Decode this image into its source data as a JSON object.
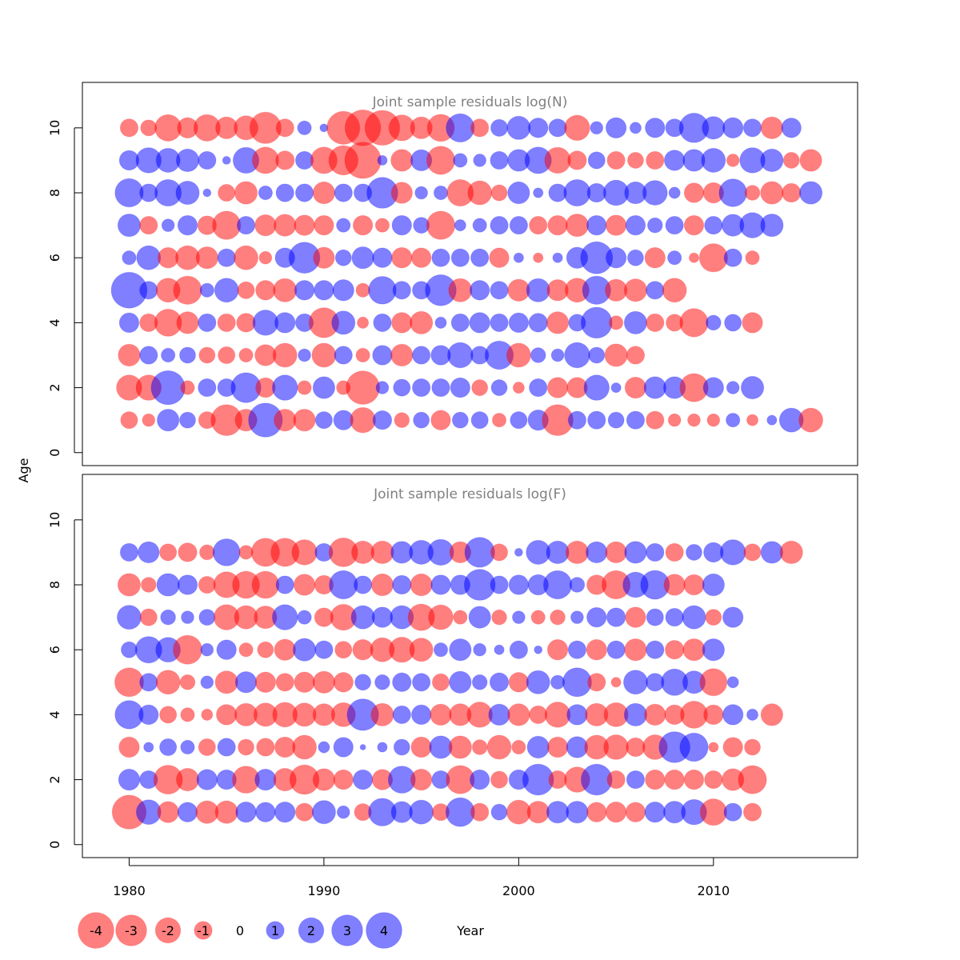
{
  "chart_data": {
    "type": "bubble-residuals",
    "ylabel": "Age",
    "xlabel": "Year",
    "x_ticks": [
      1980,
      1990,
      2000,
      2010
    ],
    "y_ticks": [
      0,
      2,
      4,
      6,
      8,
      10
    ],
    "xlim": [
      1977.6,
      2017.4
    ],
    "ylim": [
      -0.4,
      11.4
    ],
    "years_start": 1980,
    "colors": {
      "positive": "#0000ff",
      "negative": "#ff0000",
      "opacity": 0.5
    },
    "legend": {
      "labels": [
        "-4",
        "-3",
        "-2",
        "-1",
        "0",
        "1",
        "2",
        "3",
        "4"
      ],
      "values": [
        -4,
        -3,
        -2,
        -1,
        0,
        1,
        2,
        3,
        4
      ],
      "placement": "bottom-left"
    },
    "panels": [
      {
        "title": "Joint sample residuals log(N)",
        "ages": [
          1,
          2,
          3,
          4,
          5,
          6,
          7,
          8,
          9,
          10
        ],
        "rows": [
          [
            -0.9,
            -0.5,
            1.5,
            0.8,
            -0.9,
            -3.0,
            -1.5,
            3.6,
            -1.5,
            -1.5,
            0.9,
            1.2,
            -2.0,
            1.1,
            -0.7,
            0.8,
            -1.2,
            0.8,
            0.9,
            -0.6,
            0.9,
            1.3,
            -3.0,
            1.0,
            1.0,
            0.8,
            1.0,
            -1.0,
            -0.5,
            -0.5,
            -0.5,
            0.6,
            -0.4,
            0.3,
            1.8,
            -1.8
          ],
          [
            -2.0,
            -2.0,
            3.6,
            -0.6,
            1.0,
            1.0,
            2.8,
            -1.2,
            2.0,
            -0.6,
            1.5,
            -0.6,
            -3.5,
            0.5,
            0.9,
            1.0,
            1.0,
            1.2,
            -0.8,
            0.8,
            -0.4,
            1.0,
            -1.3,
            -1.3,
            2.0,
            0.3,
            -1.4,
            1.5,
            1.5,
            -2.5,
            1.3,
            0.5,
            1.6
          ],
          [
            -1.5,
            1.0,
            0.6,
            0.8,
            -0.8,
            -0.9,
            -0.6,
            -1.4,
            -1.8,
            0.5,
            -1.8,
            1.0,
            -0.6,
            1.2,
            -1.5,
            1.0,
            1.2,
            2.0,
            1.0,
            2.5,
            -1.8,
            0.7,
            0.5,
            2.0,
            0.8,
            -1.6,
            -1.0
          ],
          [
            1.2,
            -1.0,
            -2.3,
            -1.5,
            1.0,
            -1.0,
            -1.1,
            2.0,
            1.3,
            1.0,
            -2.8,
            1.7,
            -0.4,
            1.0,
            -1.3,
            -1.6,
            0.4,
            1.0,
            1.3,
            1.0,
            1.2,
            1.1,
            -1.5,
            0.9,
            3.0,
            -0.6,
            1.6,
            -1.0,
            -0.9,
            -2.5,
            0.7,
            0.9,
            -1.3
          ],
          [
            4.0,
            1.0,
            -1.8,
            -2.5,
            0.6,
            1.8,
            -0.9,
            -1.2,
            -1.7,
            1.2,
            1.2,
            1.4,
            -0.6,
            2.4,
            1.0,
            1.0,
            3.0,
            -1.7,
            1.2,
            1.0,
            -1.5,
            1.7,
            -1.4,
            -1.8,
            2.5,
            -1.5,
            -1.6,
            1.0,
            -1.8
          ],
          [
            0.6,
            1.8,
            -1.3,
            -1.8,
            -1.5,
            1.0,
            -1.8,
            -0.5,
            1.2,
            3.0,
            -1.4,
            0.8,
            1.5,
            1.2,
            -1.3,
            -1.2,
            1.0,
            1.0,
            1.0,
            -1.2,
            0.3,
            -0.3,
            0.3,
            1.4,
            3.2,
            1.3,
            0.8,
            -1.3,
            0.6,
            -0.3,
            -2.5,
            1.0,
            -0.6
          ],
          [
            1.6,
            -1.0,
            0.5,
            1.2,
            -1.1,
            -2.5,
            1.0,
            -1.4,
            -1.5,
            -1.3,
            -1.2,
            0.6,
            -1.2,
            -0.6,
            1.2,
            0.8,
            -2.5,
            0.4,
            0.6,
            1.0,
            1.0,
            -1.0,
            -1.2,
            -1.6,
            1.2,
            -1.3,
            1.2,
            0.7,
            1.0,
            -1.2,
            1.0,
            1.5,
            2.0,
            1.6
          ],
          [
            2.5,
            1.0,
            2.2,
            1.7,
            0.2,
            -0.9,
            -1.6,
            0.6,
            1.0,
            1.0,
            -1.5,
            1.0,
            1.0,
            3.0,
            -1.4,
            0.5,
            0.6,
            -2.2,
            -1.8,
            -0.8,
            1.5,
            0.3,
            1.0,
            2.2,
            1.1,
            2.0,
            1.5,
            1.9,
            0.4,
            -1.2,
            -1.3,
            2.4,
            -0.7,
            -1.6,
            -1.1,
            1.6
          ],
          [
            1.2,
            2.0,
            1.8,
            1.6,
            1.0,
            0.2,
            2.1,
            -2.2,
            -1.1,
            1.0,
            -2.2,
            -2.7,
            -4.1,
            0.3,
            -1.5,
            1.4,
            -2.5,
            0.6,
            0.5,
            1.0,
            1.5,
            2.2,
            -2.1,
            -1.1,
            0.9,
            -1.0,
            -0.8,
            -1.0,
            1.3,
            1.5,
            1.8,
            -0.5,
            2.0,
            1.6,
            -0.8,
            -1.5
          ],
          [
            -1.0,
            -0.8,
            -2.2,
            -1.3,
            -2.2,
            -1.5,
            -1.8,
            -3.1,
            -1.0,
            0.6,
            0.2,
            -3.4,
            -4.0,
            -3.8,
            -2.1,
            -1.5,
            -2.3,
            2.5,
            -1.0,
            0.9,
            1.7,
            1.2,
            1.0,
            -2.0,
            0.5,
            1.3,
            0.4,
            1.2,
            1.0,
            2.7,
            1.6,
            1.3,
            1.0,
            -1.5,
            1.2
          ]
        ]
      },
      {
        "title": "Joint sample residuals log(F)",
        "ages": [
          1,
          2,
          3,
          4,
          5,
          6,
          7,
          8,
          9
        ],
        "rows": [
          [
            -3.6,
            1.9,
            -1.4,
            1.2,
            -1.6,
            -1.6,
            1.3,
            1.2,
            1.3,
            -1.0,
            1.7,
            0.5,
            -0.9,
            2.4,
            1.4,
            1.8,
            -0.9,
            2.6,
            -1.0,
            0.8,
            -1.8,
            -1.5,
            1.5,
            1.5,
            -1.2,
            -1.3,
            -1.2,
            1.3,
            1.5,
            2.0,
            -2.2,
            1.0,
            -1.0
          ],
          [
            1.4,
            1.0,
            -2.6,
            -1.6,
            1.3,
            1.2,
            -2.3,
            1.4,
            -1.6,
            -2.7,
            -1.5,
            -1.2,
            1.2,
            -1.3,
            2.3,
            -1.4,
            1.0,
            -2.5,
            1.2,
            -0.9,
            1.2,
            3.0,
            -1.0,
            -2.0,
            3.0,
            -1.0,
            1.0,
            -1.2,
            -1.2,
            -1.2,
            -1.0,
            -1.5,
            -2.5
          ],
          [
            -1.3,
            0.3,
            0.9,
            0.6,
            -0.9,
            1.0,
            -0.8,
            -1.0,
            -1.3,
            -1.8,
            0.4,
            1.2,
            0.1,
            0.3,
            0.8,
            -1.3,
            1.6,
            -1.6,
            -0.7,
            -1.8,
            -0.6,
            1.5,
            -1.3,
            1.4,
            -1.8,
            -1.9,
            -1.1,
            -1.9,
            3.0,
            2.5,
            -0.3,
            -1.2,
            -0.8
          ],
          [
            2.5,
            1.2,
            -0.9,
            -0.6,
            -0.4,
            -1.3,
            -1.6,
            -1.7,
            -1.9,
            -1.7,
            -1.5,
            -1.8,
            3.1,
            -1.6,
            1.0,
            1.2,
            -1.4,
            -1.5,
            -2.0,
            1.4,
            -1.5,
            -1.0,
            -2.0,
            1.3,
            -1.6,
            -1.8,
            1.6,
            -1.4,
            -1.2,
            -2.3,
            -1.2,
            1.3,
            0.4,
            -1.5
          ],
          [
            -2.6,
            1.0,
            -1.8,
            -0.7,
            0.5,
            -1.6,
            1.4,
            -1.3,
            -1.0,
            -1.3,
            -1.5,
            -1.2,
            0.8,
            0.7,
            1.1,
            1.0,
            -0.9,
            1.5,
            0.7,
            1.1,
            -1.2,
            1.7,
            0.6,
            2.6,
            -1.0,
            -0.3,
            1.8,
            1.0,
            2.2,
            1.6,
            -2.3,
            0.4
          ],
          [
            0.8,
            2.2,
            1.9,
            -2.6,
            0.5,
            1.2,
            -0.6,
            -0.8,
            -1.4,
            1.6,
            1.0,
            -0.9,
            -1.3,
            -1.8,
            -2.0,
            -1.7,
            0.6,
            1.5,
            0.5,
            0.3,
            1.0,
            0.2,
            -1.3,
            1.0,
            -1.3,
            1.0,
            -1.5,
            1.0,
            -1.1,
            -1.5,
            1.5
          ],
          [
            1.8,
            -0.9,
            0.7,
            0.5,
            0.8,
            -2.0,
            -1.7,
            -1.6,
            2.0,
            0.6,
            -1.1,
            -2.1,
            1.7,
            1.3,
            1.7,
            -2.2,
            -1.9,
            -0.6,
            1.5,
            -0.7,
            0.5,
            -0.6,
            -0.7,
            0.5,
            1.2,
            1.1,
            -1.3,
            0.9,
            1.0,
            1.7,
            -0.8,
            1.3
          ],
          [
            -1.6,
            -0.7,
            1.6,
            1.2,
            -0.9,
            -2.1,
            -2.3,
            -2.3,
            1.0,
            -1.4,
            -1.1,
            2.5,
            1.0,
            -1.5,
            1.1,
            -1.5,
            1.2,
            1.2,
            3.0,
            1.0,
            1.2,
            1.3,
            2.5,
            0.7,
            -1.2,
            -2.5,
            2.0,
            2.6,
            -1.4,
            -1.3,
            1.5
          ],
          [
            1.0,
            1.4,
            -0.9,
            -1.1,
            -0.7,
            2.3,
            -0.6,
            -2.5,
            -2.5,
            -2.0,
            1.0,
            -2.6,
            -1.6,
            -1.6,
            1.5,
            1.8,
            2.1,
            -1.4,
            2.8,
            -0.9,
            0.2,
            1.8,
            1.6,
            -1.6,
            1.4,
            -1.4,
            1.5,
            1.0,
            -1.0,
            0.8,
            1.2,
            2.0,
            -0.9,
            1.5,
            -1.6
          ]
        ]
      }
    ]
  }
}
